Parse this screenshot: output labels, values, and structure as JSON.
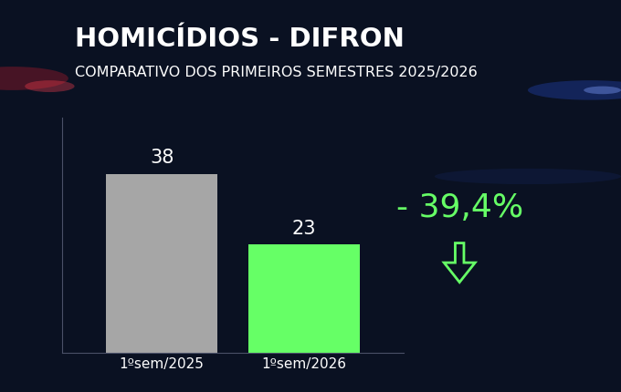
{
  "chart_data": {
    "type": "bar",
    "title": "HOMICÍDIOS - DIFRON",
    "subtitle": "COMPARATIVO DOS PRIMEIROS SEMESTRES 2025/2026",
    "categories": [
      "1ºsem/2025",
      "1ºsem/2026"
    ],
    "values": [
      38,
      23
    ],
    "colors": [
      "#a6a6a6",
      "#66ff66"
    ],
    "ylim": [
      0,
      50
    ],
    "data_labels": true,
    "tick_labels": "x",
    "annotation": "- 39,4%"
  }
}
